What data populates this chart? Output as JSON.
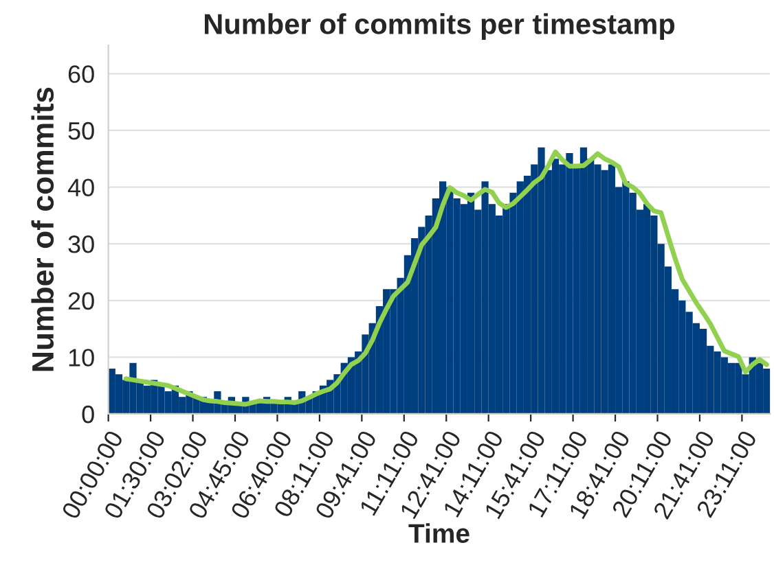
{
  "chart_data": {
    "type": "bar",
    "title": "Number of commits per timestamp",
    "xlabel": "Time",
    "ylabel": "Number of commits",
    "ylim": [
      0,
      65
    ],
    "yticks": [
      0,
      10,
      20,
      30,
      40,
      50,
      60
    ],
    "categories": [
      "00:00:00",
      null,
      null,
      null,
      null,
      null,
      "01:30:00",
      null,
      null,
      null,
      null,
      null,
      "03:02:00",
      null,
      null,
      null,
      null,
      null,
      "04:45:00",
      null,
      null,
      null,
      null,
      null,
      "06:40:00",
      null,
      null,
      null,
      null,
      null,
      "08:11:00",
      null,
      null,
      null,
      null,
      null,
      "09:41:00",
      null,
      null,
      null,
      null,
      null,
      "11:11:00",
      null,
      null,
      null,
      null,
      null,
      "12:41:00",
      null,
      null,
      null,
      null,
      null,
      "14:11:00",
      null,
      null,
      null,
      null,
      null,
      "15:41:00",
      null,
      null,
      null,
      null,
      null,
      "17:11:00",
      null,
      null,
      null,
      null,
      null,
      "18:41:00",
      null,
      null,
      null,
      null,
      null,
      "20:11:00",
      null,
      null,
      null,
      null,
      null,
      "21:41:00",
      null,
      null,
      null,
      null,
      null,
      "23:11:00",
      null,
      null,
      null
    ],
    "grid": "y",
    "legend": false,
    "series": [
      {
        "color": "#003f7f",
        "values": [
          8,
          7,
          6,
          9,
          6,
          5,
          6,
          5,
          4,
          5,
          3,
          4,
          3,
          3,
          2,
          4,
          2,
          3,
          2,
          3,
          2,
          2,
          3,
          2,
          2,
          3,
          2,
          4,
          3,
          4,
          5,
          6,
          7,
          9,
          10,
          11,
          14,
          16,
          19,
          22,
          22,
          24,
          28,
          31,
          33,
          35,
          38,
          41,
          40,
          38,
          37,
          39,
          36,
          41,
          37,
          35,
          37,
          39,
          41,
          42,
          44,
          47,
          43,
          45,
          44,
          46,
          44,
          47,
          45,
          44,
          43,
          44,
          40,
          41,
          39,
          36,
          37,
          35,
          30,
          26,
          22,
          20,
          18,
          16,
          15,
          12,
          11,
          10,
          9,
          9,
          7,
          10,
          9,
          8
        ]
      },
      {
        "type": "line",
        "color": "#92d050",
        "values": [
          null,
          null,
          6.2,
          6,
          5.8,
          5.6,
          5.4,
          5.2,
          5,
          4.5,
          4,
          3.5,
          3,
          2.5,
          2.3,
          2.2,
          2,
          1.9,
          1.8,
          1.7,
          2,
          2.3,
          2.2,
          2.2,
          2.1,
          2.1,
          2,
          2.3,
          2.9,
          3.5,
          4,
          4.4,
          5.5,
          7.2,
          8.7,
          9.4,
          10.7,
          13,
          16,
          18.5,
          20.8,
          22,
          23.2,
          26.5,
          29.8,
          31.3,
          32.9,
          36.8,
          39.9,
          39,
          38.5,
          37.7,
          38.7,
          39.6,
          39.1,
          37.2,
          36.4,
          37.1,
          38.3,
          39.5,
          40.8,
          41.7,
          43.8,
          46.2,
          44.8,
          43.7,
          43.7,
          43.8,
          44.8,
          45.9,
          45,
          44.4,
          43.6,
          40.6,
          40,
          38.9,
          37.1,
          35.8,
          35.5,
          31.4,
          27.4,
          23.8,
          21.7,
          19.6,
          17.8,
          15.9,
          13.5,
          11.1,
          10.6,
          10.1,
          7.4,
          8.7,
          9.6,
          8.7
        ]
      }
    ]
  }
}
